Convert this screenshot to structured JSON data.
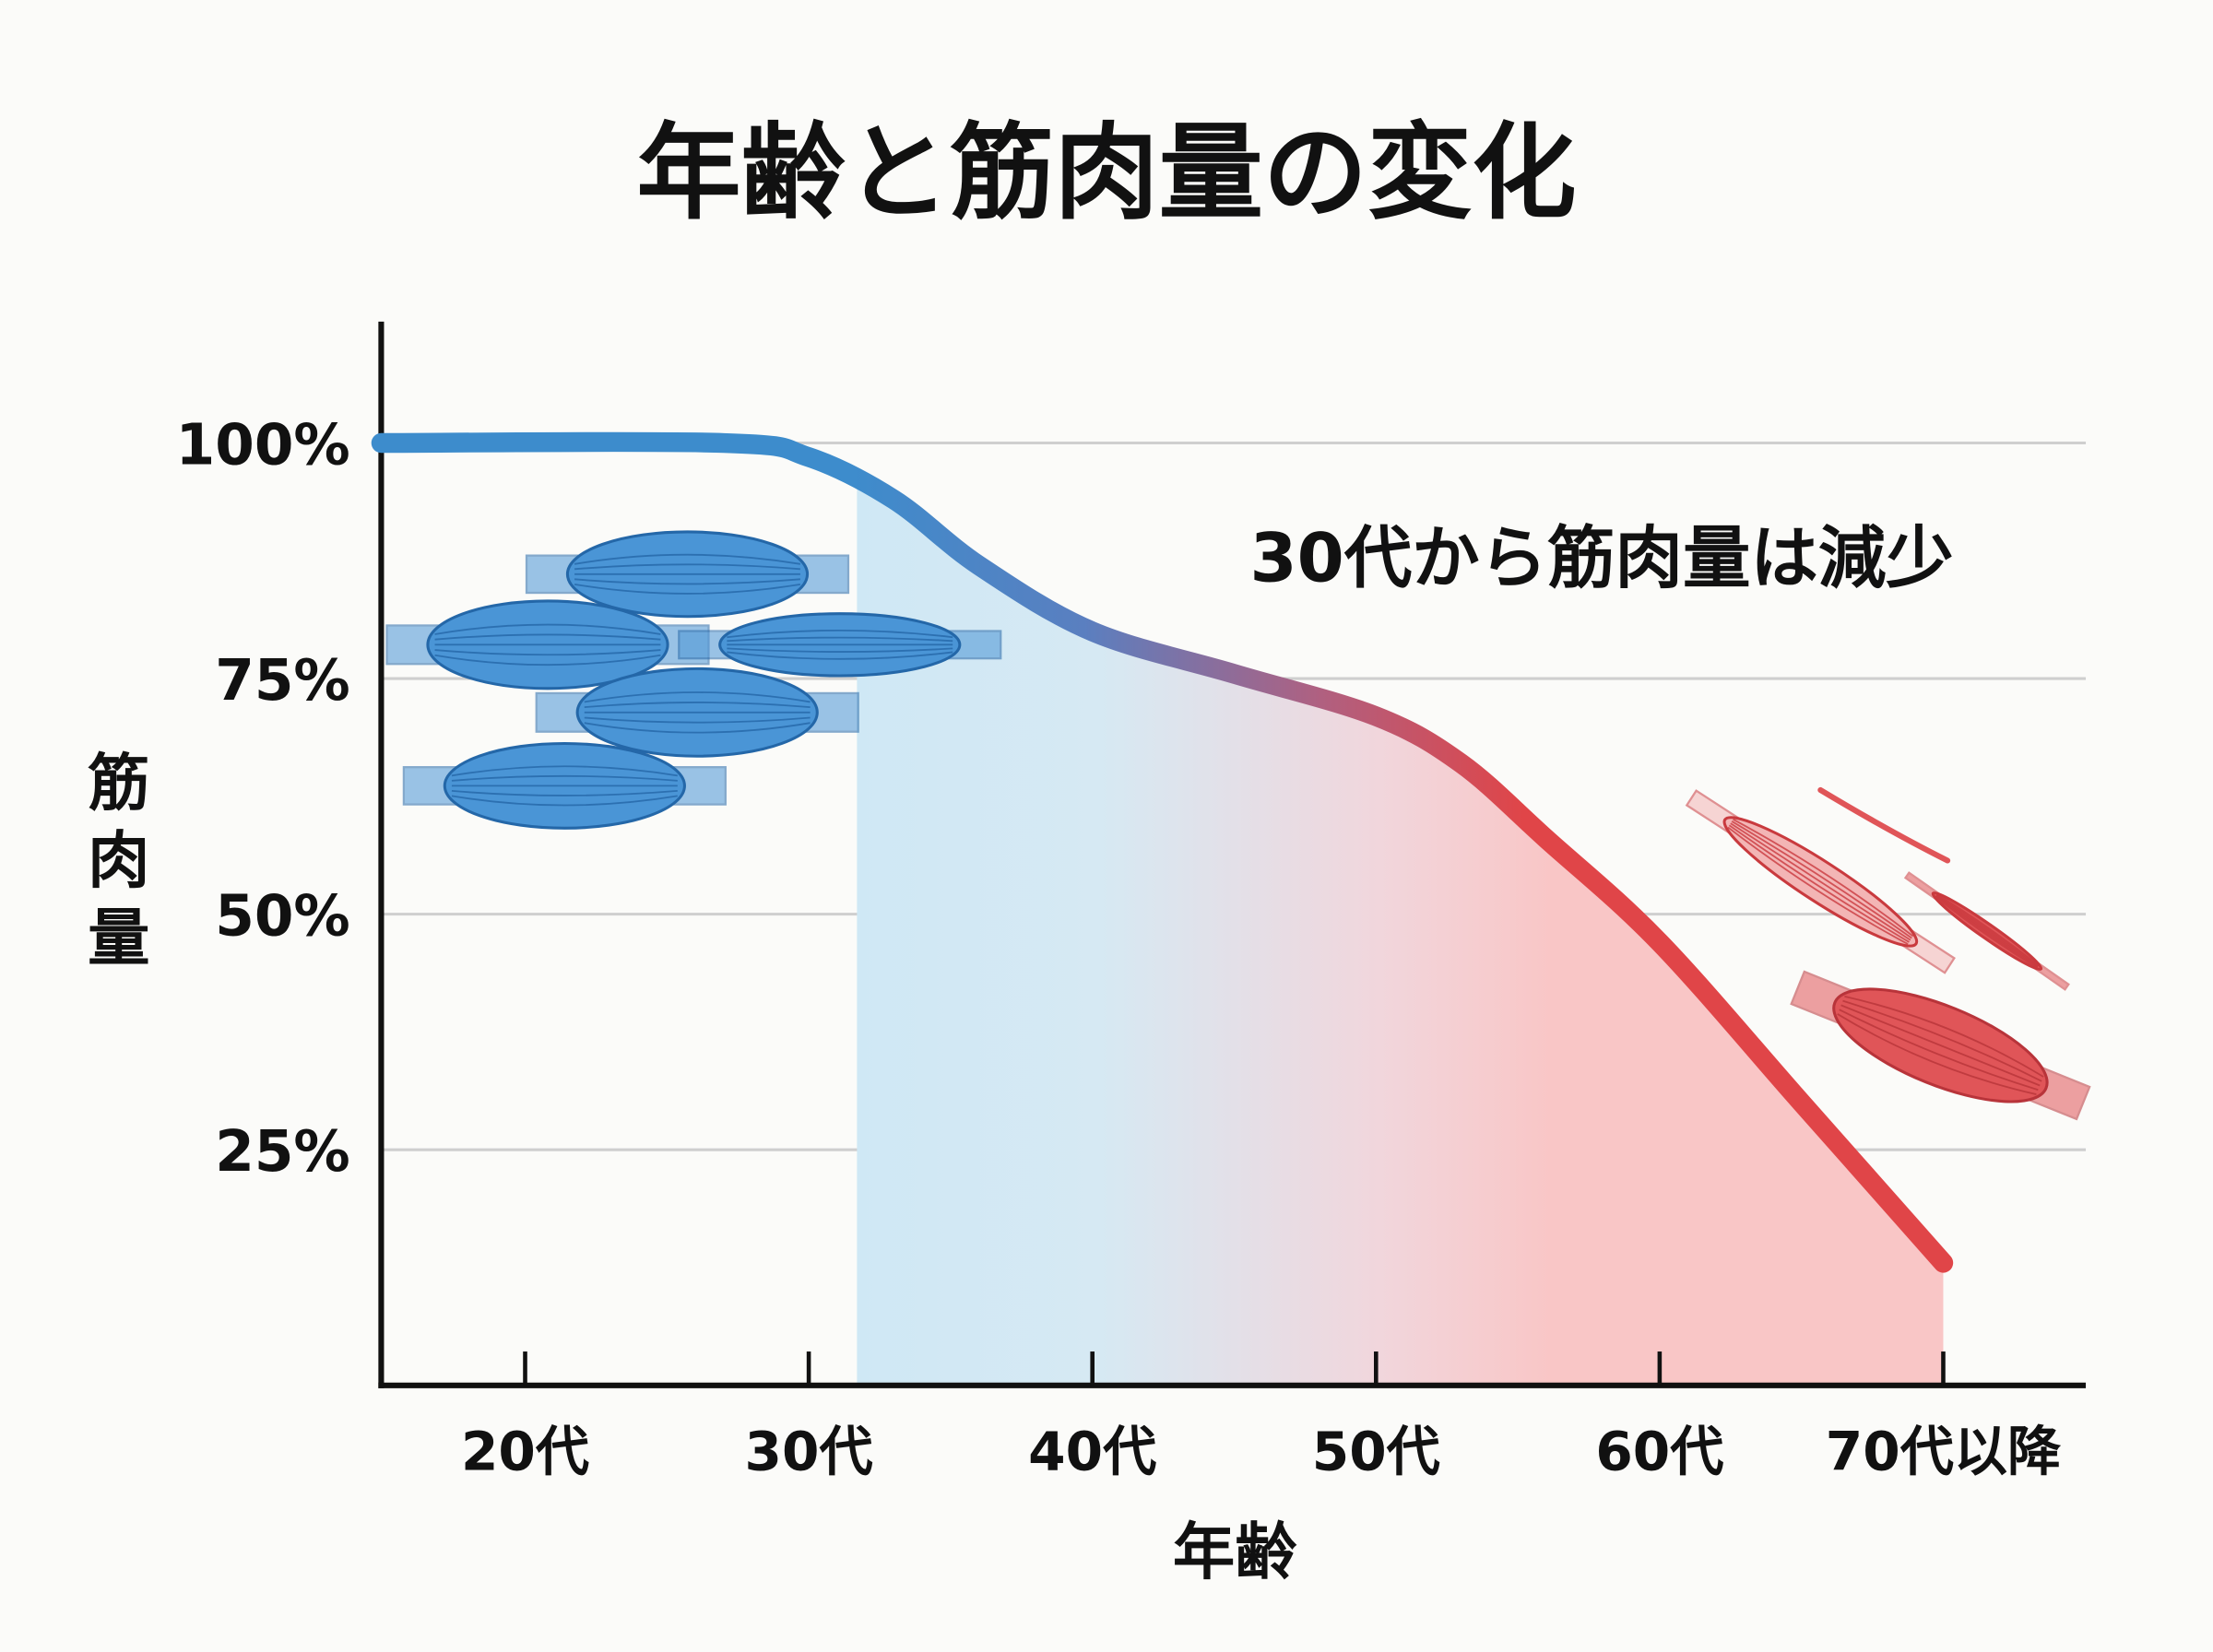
{
  "chart_data": {
    "type": "area",
    "title": "年齢と筋肉量の変化",
    "xlabel": "年齢",
    "ylabel": "筋肉量",
    "annotation": "30代から筋肉量は減少",
    "x_tick_labels": [
      "20代",
      "30代",
      "40代",
      "50代",
      "60代",
      "70代以降"
    ],
    "x_tick_values": [
      20,
      30,
      40,
      50,
      60,
      70
    ],
    "y_tick_labels": [
      "100%",
      "75%",
      "50%",
      "25%"
    ],
    "y_tick_values": [
      100,
      75,
      50,
      25
    ],
    "xlim": [
      15,
      75
    ],
    "ylim": [
      0,
      100
    ],
    "grid": true,
    "shaded_from_x": 31.7,
    "series": [
      {
        "x": [
          15,
          27,
          30,
          33,
          36,
          40,
          45,
          50,
          53,
          56,
          60,
          65,
          70
        ],
        "y": [
          100,
          100,
          98.5,
          94,
          87,
          80,
          75.5,
          71,
          66,
          58,
          47,
          30,
          13
        ]
      }
    ],
    "colors": {
      "young": "#3d8ccc",
      "old": "#e04548",
      "fill_young": "#cfe8f5",
      "fill_old": "#f9c6c6",
      "grid": "#cfcfcf",
      "axis": "#111111"
    },
    "icons": {
      "left": "healthy-muscle-bundle-icons",
      "right": "atrophied-muscle-icons"
    }
  }
}
